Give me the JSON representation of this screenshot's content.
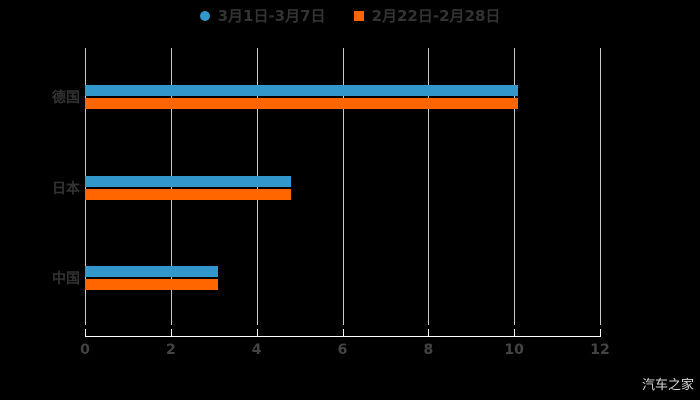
{
  "chart_data": {
    "type": "bar",
    "orientation": "horizontal",
    "title": "",
    "categories": [
      "德国",
      "日本",
      "中国"
    ],
    "series": [
      {
        "name": "3月1日-3月7日",
        "marker": "circle",
        "color": "#3298CB",
        "values": [
          10.1,
          4.8,
          3.1
        ]
      },
      {
        "name": "2月22日-2月28日",
        "marker": "square",
        "color": "#FF6600",
        "values": [
          10.1,
          4.8,
          3.1
        ]
      }
    ],
    "xlim": [
      0,
      12
    ],
    "x_ticks": [
      0,
      2,
      4,
      6,
      8,
      10,
      12
    ],
    "grid": true,
    "legend_position": "top-center",
    "background": "#000000"
  },
  "watermark": {
    "label": "汽车之家"
  },
  "colors": {
    "background": "#000000",
    "grid_line": "#c9c9c9",
    "axis_line": "#ffffff",
    "tick_label": "#444444",
    "category_label": "#333333",
    "legend_label": "#333333",
    "series_blue": "#3298CB",
    "series_orange": "#FF6600",
    "watermark": "#d9d9d9"
  }
}
